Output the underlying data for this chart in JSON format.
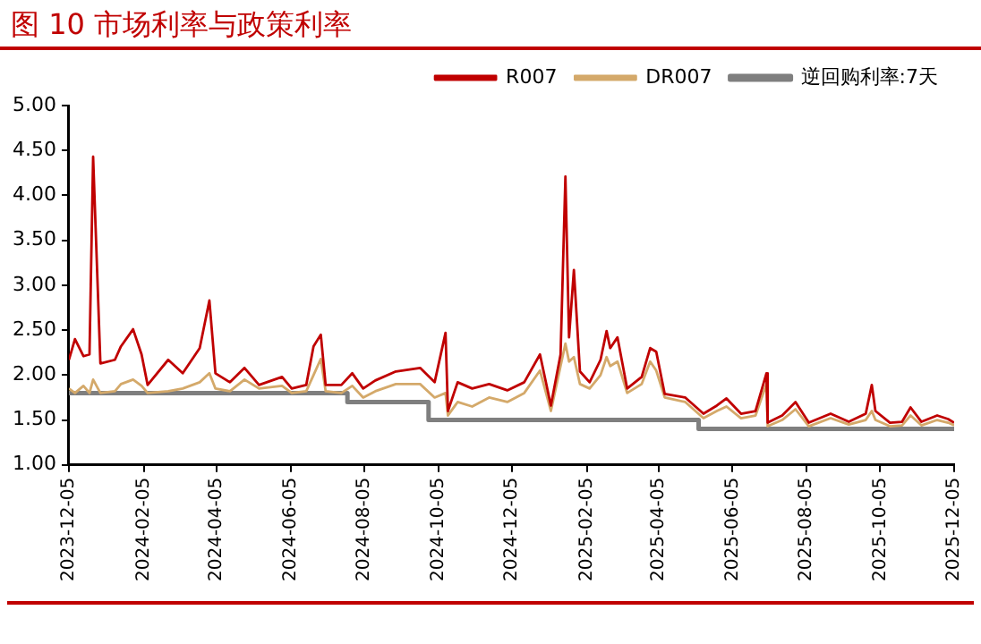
{
  "chart_data": {
    "type": "line",
    "title": "图 10 市场利率与政策利率",
    "x": [
      "2023-12-05",
      "2023-12-10",
      "2023-12-17",
      "2023-12-22",
      "2023-12-25",
      "2023-12-31",
      "2024-01-12",
      "2024-01-17",
      "2024-01-27",
      "2024-02-03",
      "2024-02-08",
      "2024-02-25",
      "2024-03-08",
      "2024-03-22",
      "2024-03-30",
      "2024-04-04",
      "2024-04-16",
      "2024-04-28",
      "2024-05-10",
      "2024-05-29",
      "2024-06-06",
      "2024-06-18",
      "2024-06-24",
      "2024-06-30",
      "2024-07-04",
      "2024-07-17",
      "2024-07-26",
      "2024-08-04",
      "2024-08-14",
      "2024-08-31",
      "2024-09-20",
      "2024-10-02",
      "2024-10-11",
      "2024-10-13",
      "2024-10-21",
      "2024-11-02",
      "2024-11-16",
      "2024-12-01",
      "2024-12-15",
      "2024-12-28",
      "2025-01-06",
      "2025-01-14",
      "2025-01-18",
      "2025-01-21",
      "2025-01-25",
      "2025-01-30",
      "2025-02-07",
      "2025-02-16",
      "2025-02-21",
      "2025-02-24",
      "2025-03-02",
      "2025-03-10",
      "2025-03-22",
      "2025-03-29",
      "2025-04-03",
      "2025-04-10",
      "2025-04-27",
      "2025-05-12",
      "2025-05-23",
      "2025-05-31",
      "2025-06-12",
      "2025-06-24",
      "2025-07-03",
      "2025-07-04",
      "2025-07-16",
      "2025-07-27",
      "2025-08-07",
      "2025-08-25",
      "2025-09-09",
      "2025-09-23",
      "2025-09-28",
      "2025-10-01",
      "2025-10-13",
      "2025-10-23",
      "2025-10-30",
      "2025-11-08",
      "2025-11-21",
      "2025-11-30",
      "2025-12-05"
    ],
    "series": [
      {
        "name": "R007",
        "color": "#c00000",
        "values": [
          2.17,
          2.4,
          2.21,
          2.23,
          4.43,
          2.13,
          2.17,
          2.32,
          2.51,
          2.23,
          1.89,
          2.17,
          2.02,
          2.3,
          2.83,
          2.02,
          1.92,
          2.08,
          1.89,
          1.98,
          1.85,
          1.89,
          2.32,
          2.45,
          1.89,
          1.89,
          2.02,
          1.85,
          1.94,
          2.04,
          2.08,
          1.92,
          2.47,
          1.6,
          1.92,
          1.85,
          1.9,
          1.83,
          1.92,
          2.23,
          1.66,
          2.23,
          4.21,
          2.42,
          3.17,
          2.04,
          1.92,
          2.17,
          2.49,
          2.3,
          2.42,
          1.85,
          1.98,
          2.3,
          2.26,
          1.79,
          1.75,
          1.57,
          1.66,
          1.74,
          1.57,
          1.6,
          2.02,
          1.47,
          1.55,
          1.7,
          1.47,
          1.57,
          1.48,
          1.57,
          1.89,
          1.6,
          1.47,
          1.48,
          1.64,
          1.48,
          1.55,
          1.51,
          1.47
        ]
      },
      {
        "name": "DR007",
        "color": "#d4a96a",
        "values": [
          1.85,
          1.8,
          1.88,
          1.8,
          1.95,
          1.8,
          1.82,
          1.9,
          1.95,
          1.88,
          1.8,
          1.82,
          1.85,
          1.92,
          2.02,
          1.85,
          1.82,
          1.95,
          1.85,
          1.88,
          1.8,
          1.82,
          2.0,
          2.18,
          1.82,
          1.8,
          1.88,
          1.75,
          1.82,
          1.9,
          1.9,
          1.75,
          1.8,
          1.55,
          1.7,
          1.65,
          1.75,
          1.7,
          1.8,
          2.05,
          1.6,
          2.1,
          2.35,
          2.15,
          2.2,
          1.9,
          1.85,
          2.0,
          2.2,
          2.1,
          2.15,
          1.8,
          1.9,
          2.15,
          2.05,
          1.75,
          1.7,
          1.52,
          1.6,
          1.65,
          1.52,
          1.55,
          1.9,
          1.43,
          1.5,
          1.62,
          1.43,
          1.52,
          1.45,
          1.5,
          1.6,
          1.5,
          1.43,
          1.44,
          1.55,
          1.44,
          1.5,
          1.47,
          1.44
        ]
      },
      {
        "name": "逆回购利率:7天",
        "type": "step",
        "color": "#7f7f7f",
        "x": [
          "2023-12-05",
          "2024-07-22",
          "2024-09-27",
          "2025-05-08",
          "2025-12-05"
        ],
        "values": [
          1.8,
          1.7,
          1.5,
          1.4,
          1.4
        ]
      }
    ],
    "xlim": [
      "2023-12-05",
      "2025-12-05"
    ],
    "xticks": [
      "2023-12-05",
      "2024-02-05",
      "2024-04-05",
      "2024-06-05",
      "2024-08-05",
      "2024-10-05",
      "2024-12-05",
      "2025-02-05",
      "2025-04-05",
      "2025-06-05",
      "2025-08-05",
      "2025-10-05",
      "2025-12-05"
    ],
    "ylim": [
      1,
      5
    ],
    "yticks": [
      {
        "value": 1,
        "label": "1.00"
      },
      {
        "value": 1.5,
        "label": "1.50"
      },
      {
        "value": 2,
        "label": "2.00"
      },
      {
        "value": 2.5,
        "label": "2.50"
      },
      {
        "value": 3,
        "label": "3.00"
      },
      {
        "value": 3.5,
        "label": "3.50"
      },
      {
        "value": 4,
        "label": "4.00"
      },
      {
        "value": 4.5,
        "label": "4.50"
      },
      {
        "value": 5,
        "label": "5.00"
      }
    ],
    "grid": false,
    "legend": "top",
    "marker": "none",
    "line_style": "solid"
  }
}
